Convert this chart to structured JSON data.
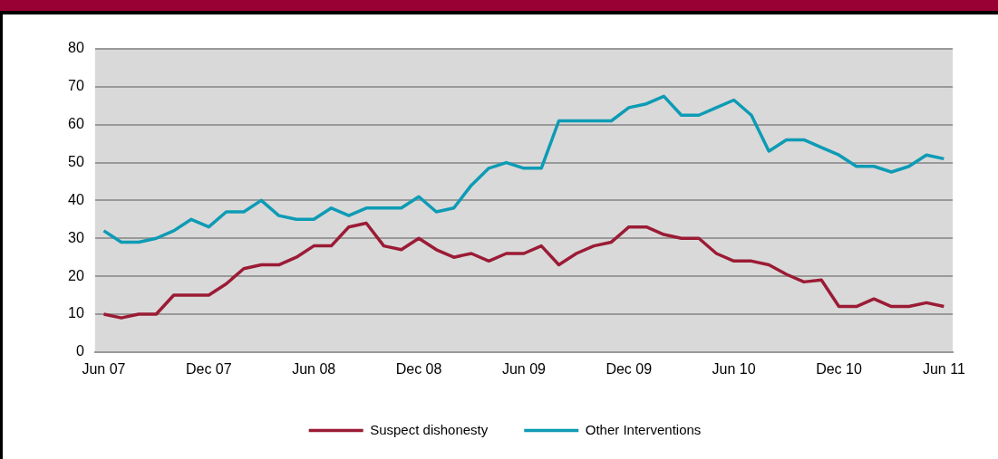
{
  "chart_data": {
    "type": "line",
    "categories": [
      "Jun 07",
      null,
      null,
      null,
      null,
      null,
      "Dec 07",
      null,
      null,
      null,
      null,
      null,
      "Jun 08",
      null,
      null,
      null,
      null,
      null,
      "Dec 08",
      null,
      null,
      null,
      null,
      null,
      "Jun 09",
      null,
      null,
      null,
      null,
      null,
      "Dec 09",
      null,
      null,
      null,
      null,
      null,
      "Jun 10",
      null,
      null,
      null,
      null,
      null,
      "Dec 10",
      null,
      null,
      null,
      null,
      null,
      "Jun 11"
    ],
    "series": [
      {
        "name": "Suspect dishonesty",
        "color": "#9b1b35",
        "values": [
          10,
          9,
          10,
          10,
          15,
          15,
          15,
          18,
          22,
          23,
          23,
          25,
          28,
          28,
          33,
          34,
          28,
          27,
          30,
          27,
          25,
          26,
          24,
          26,
          26,
          28,
          23,
          26,
          28,
          29,
          33,
          33,
          31,
          30,
          30,
          26,
          24,
          24,
          23,
          20.5,
          18.5,
          19,
          12,
          12,
          14,
          12,
          12,
          13,
          12
        ]
      },
      {
        "name": "Other Interventions",
        "color": "#0d9bb5",
        "values": [
          32,
          29,
          29,
          30,
          32,
          35,
          33,
          37,
          37,
          40,
          36,
          35,
          35,
          38,
          36,
          38,
          38,
          38,
          41,
          37,
          38,
          44,
          48.5,
          50,
          48.5,
          48.5,
          61,
          61,
          61,
          61,
          64.5,
          65.5,
          67.5,
          62.5,
          62.5,
          64.5,
          66.5,
          62.5,
          53,
          56,
          56,
          54,
          52,
          49,
          49,
          47.5,
          49,
          52,
          51
        ]
      }
    ],
    "ylim": [
      0,
      80
    ],
    "yticks": [
      0,
      10,
      20,
      30,
      40,
      50,
      60,
      70,
      80
    ],
    "grid": "y",
    "legend": "bottom",
    "marker": "none",
    "line_style": "solid"
  }
}
